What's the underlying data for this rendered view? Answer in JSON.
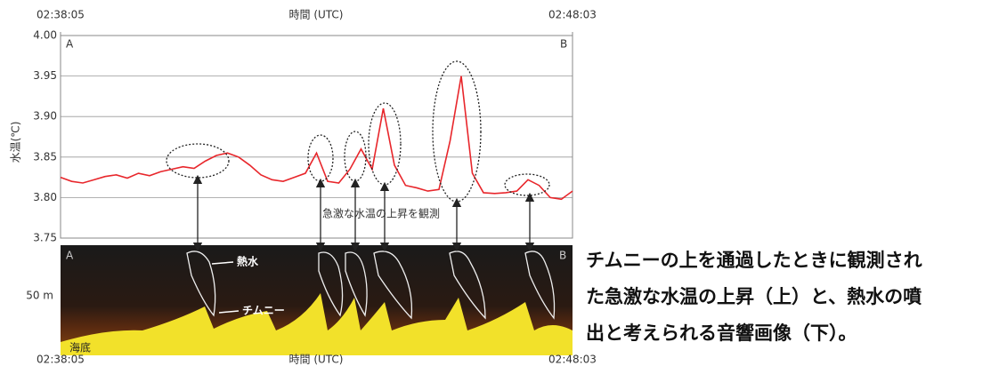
{
  "chart_data": {
    "type": "line",
    "x_label": "時間 (UTC)",
    "y_label": "水温(℃)",
    "corner_labels": [
      "A",
      "B"
    ],
    "annotation": "急激な水温の上昇を観測",
    "x": [
      "02:38:05",
      "02:38:18",
      "02:38:31",
      "02:38:44",
      "02:38:57",
      "02:39:10",
      "02:39:23",
      "02:39:36",
      "02:39:49",
      "02:40:02",
      "02:40:15",
      "02:40:28",
      "02:40:41",
      "02:40:54",
      "02:41:07",
      "02:41:20",
      "02:41:33",
      "02:41:46",
      "02:41:59",
      "02:42:12",
      "02:42:25",
      "02:42:38",
      "02:42:51",
      "02:43:04",
      "02:43:17",
      "02:43:30",
      "02:43:43",
      "02:43:56",
      "02:44:09",
      "02:44:22",
      "02:44:35",
      "02:44:48",
      "02:45:01",
      "02:45:14",
      "02:45:27",
      "02:45:40",
      "02:45:53",
      "02:46:06",
      "02:46:19",
      "02:46:32",
      "02:46:45",
      "02:46:58",
      "02:47:11",
      "02:47:24",
      "02:47:37",
      "02:47:50",
      "02:48:03"
    ],
    "series": [
      {
        "color": "#e8262b",
        "values": [
          3.825,
          3.82,
          3.818,
          3.822,
          3.826,
          3.828,
          3.824,
          3.83,
          3.827,
          3.832,
          3.835,
          3.838,
          3.836,
          3.845,
          3.852,
          3.855,
          3.85,
          3.84,
          3.828,
          3.822,
          3.82,
          3.825,
          3.83,
          3.855,
          3.82,
          3.818,
          3.835,
          3.86,
          3.835,
          3.91,
          3.84,
          3.815,
          3.812,
          3.808,
          3.81,
          3.87,
          3.95,
          3.83,
          3.806,
          3.805,
          3.806,
          3.808,
          3.822,
          3.815,
          3.8,
          3.798,
          3.808
        ]
      }
    ],
    "xlim": [
      "02:38:05",
      "02:48:03"
    ],
    "xticks": [
      "02:38:05",
      "02:48:03"
    ],
    "ylim": [
      3.75,
      4.0
    ],
    "yticks": [
      3.75,
      {
        "value": 3.8,
        "label": "3.80"
      },
      3.85,
      {
        "value": 3.9,
        "label": "3.90"
      },
      3.95,
      {
        "value": 4.0,
        "label": "4.00"
      }
    ],
    "grid": true
  },
  "sonar_image": {
    "corner_labels": [
      "A",
      "B"
    ],
    "hot_water": "熱水",
    "chimney": "チムニー",
    "seafloor": "海底",
    "depth": "50 m",
    "x_label": "時間 (UTC)",
    "start": "02:38:05",
    "end": "02:48:03"
  },
  "caption": [
    "チムニーの上を通過したときに観測され",
    "た急激な水温の上昇（上）と、熱水の噴",
    "出と考えられる音響画像（下）。"
  ]
}
